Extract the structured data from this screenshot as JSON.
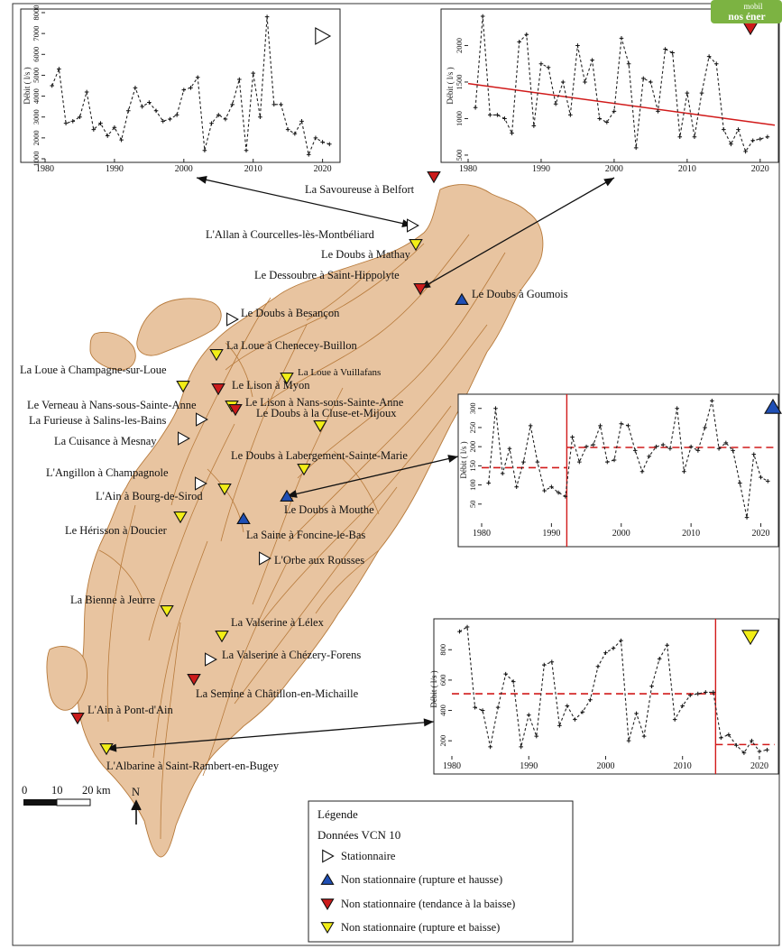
{
  "colors": {
    "region_fill": "#e8c4a0",
    "region_stroke": "#b77a3b",
    "stationnaire": "#ffffff",
    "rupture_hausse": "#1f4fb5",
    "tendance_baisse": "#cc1b1b",
    "rupture_baisse": "#f2ee16",
    "series_line": "#222222",
    "fit_line": "#d11a1a",
    "logo_bg": "#7cb342"
  },
  "logo": {
    "line1": "mobil",
    "line2": "nos éner"
  },
  "stations": [
    {
      "name": "La Savoureuse à Belfort",
      "status": "tendance_baisse"
    },
    {
      "name": "L'Allan à Courcelles-lès-Montbéliard",
      "status": "stationnaire"
    },
    {
      "name": "Le Doubs à Mathay",
      "status": "rupture_baisse"
    },
    {
      "name": "Le Dessoubre à Saint-Hippolyte",
      "status": "tendance_baisse"
    },
    {
      "name": "Le Doubs à Goumois",
      "status": "rupture_hausse"
    },
    {
      "name": "Le Doubs à Besançon",
      "status": "stationnaire"
    },
    {
      "name": "La Loue à Chenecey-Buillon",
      "status": "rupture_baisse"
    },
    {
      "name": "La Loue à Champagne-sur-Loue",
      "status": "rupture_baisse"
    },
    {
      "name": "Le Lison à Myon",
      "status": "tendance_baisse"
    },
    {
      "name": "La Loue à Vuillafans",
      "status": "rupture_baisse"
    },
    {
      "name": "Le Verneau à Nans-sous-Sainte-Anne",
      "status": "rupture_baisse"
    },
    {
      "name": "Le Lison à Nans-sous-Sainte-Anne",
      "status": "tendance_baisse"
    },
    {
      "name": "La Furieuse à Salins-les-Bains",
      "status": "stationnaire"
    },
    {
      "name": "Le Doubs à la Cluse-et-Mijoux",
      "status": "rupture_baisse"
    },
    {
      "name": "La Cuisance à Mesnay",
      "status": "stationnaire"
    },
    {
      "name": "Le Doubs à Labergement-Sainte-Marie",
      "status": "rupture_baisse"
    },
    {
      "name": "L'Angillon à Champagnole",
      "status": "stationnaire"
    },
    {
      "name": "L'Ain à Bourg-de-Sirod",
      "status": "rupture_baisse"
    },
    {
      "name": "Le Doubs à Mouthe",
      "status": "rupture_hausse"
    },
    {
      "name": "Le Hérisson à Doucier",
      "status": "rupture_baisse"
    },
    {
      "name": "La Saine à Foncine-le-Bas",
      "status": "rupture_hausse"
    },
    {
      "name": "L'Orbe aux Rousses",
      "status": "stationnaire"
    },
    {
      "name": "La Bienne à Jeurre",
      "status": "rupture_baisse"
    },
    {
      "name": "La Valserine à Lélex",
      "status": "rupture_baisse"
    },
    {
      "name": "La Valserine à Chézery-Forens",
      "status": "stationnaire"
    },
    {
      "name": "La Semine à Châtillon-en-Michaille",
      "status": "tendance_baisse"
    },
    {
      "name": "L'Ain à Pont-d'Ain",
      "status": "tendance_baisse"
    },
    {
      "name": "L'Albarine à Saint-Rambert-en-Bugey",
      "status": "rupture_baisse"
    }
  ],
  "legend": {
    "title": "Légende",
    "subtitle": "Données VCN 10",
    "items": [
      {
        "key": "stationnaire",
        "label": "Stationnaire"
      },
      {
        "key": "rupture_hausse",
        "label": "Non stationnaire (rupture et hausse)"
      },
      {
        "key": "tendance_baisse",
        "label": "Non stationnaire (tendance à la baisse)"
      },
      {
        "key": "rupture_baisse",
        "label": "Non stationnaire (rupture et baisse)"
      }
    ]
  },
  "scale": {
    "ticks": [
      "0",
      "10",
      "20 km"
    ],
    "north": "N"
  },
  "chart_data": [
    {
      "type": "line",
      "station": "L'Allan à Courcelles-lès-Montbéliard",
      "status": "stationnaire",
      "ylabel": "Débit ( l/s )",
      "xlim": [
        1980,
        2022
      ],
      "ylim": [
        1000,
        8000
      ],
      "xticks": [
        1980,
        1990,
        2000,
        2010,
        2020
      ],
      "yticks": [
        1000,
        2000,
        3000,
        4000,
        5000,
        6000,
        7000,
        8000
      ],
      "x": [
        1981,
        1982,
        1983,
        1984,
        1985,
        1986,
        1987,
        1988,
        1989,
        1990,
        1991,
        1992,
        1993,
        1994,
        1995,
        1996,
        1997,
        1998,
        1999,
        2000,
        2001,
        2002,
        2003,
        2004,
        2005,
        2006,
        2007,
        2008,
        2009,
        2010,
        2011,
        2012,
        2013,
        2014,
        2015,
        2016,
        2017,
        2018,
        2019,
        2020,
        2021
      ],
      "y": [
        4500,
        5300,
        2700,
        2800,
        3000,
        4200,
        2400,
        2700,
        2100,
        2500,
        1900,
        3300,
        4400,
        3500,
        3700,
        3300,
        2800,
        2900,
        3100,
        4300,
        4400,
        4900,
        1400,
        2700,
        3100,
        2900,
        3600,
        4800,
        1400,
        5100,
        3000,
        7800,
        3600,
        3600,
        2400,
        2200,
        2800,
        1200,
        2000,
        1800,
        1700
      ],
      "series": [
        {
          "line": "series"
        }
      ]
    },
    {
      "type": "line",
      "station": "Le Dessoubre à Saint-Hippolyte",
      "status": "tendance_baisse",
      "ylabel": "Débit ( l/s )",
      "xlim": [
        1980,
        2022
      ],
      "ylim": [
        450,
        2450
      ],
      "xticks": [
        1980,
        1990,
        2000,
        2010,
        2020
      ],
      "yticks": [
        500,
        1000,
        1500,
        2000
      ],
      "x": [
        1981,
        1982,
        1983,
        1984,
        1985,
        1986,
        1987,
        1988,
        1989,
        1990,
        1991,
        1992,
        1993,
        1994,
        1995,
        1996,
        1997,
        1998,
        1999,
        2000,
        2001,
        2002,
        2003,
        2004,
        2005,
        2006,
        2007,
        2008,
        2009,
        2010,
        2011,
        2012,
        2013,
        2014,
        2015,
        2016,
        2017,
        2018,
        2019,
        2020,
        2021
      ],
      "y": [
        1150,
        2400,
        1050,
        1050,
        1000,
        800,
        2050,
        2150,
        900,
        1750,
        1700,
        1200,
        1500,
        1050,
        2000,
        1500,
        1800,
        1000,
        950,
        1100,
        2100,
        1750,
        600,
        1550,
        1500,
        1100,
        1950,
        1900,
        750,
        1350,
        750,
        1350,
        1850,
        1750,
        850,
        650,
        850,
        550,
        700,
        720,
        750
      ],
      "trend": {
        "from": [
          1980,
          1480
        ],
        "to": [
          2022,
          910
        ]
      }
    },
    {
      "type": "line",
      "station": "Le Doubs à Mouthe",
      "status": "rupture_hausse",
      "ylabel": "Débit ( l/s )",
      "xlim": [
        1980,
        2022
      ],
      "ylim": [
        0,
        330
      ],
      "xticks": [
        1980,
        1990,
        2000,
        2010,
        2020
      ],
      "yticks": [
        50,
        100,
        150,
        200,
        250,
        300
      ],
      "x": [
        1981,
        1982,
        1983,
        1984,
        1985,
        1986,
        1987,
        1988,
        1989,
        1990,
        1991,
        1992,
        1993,
        1994,
        1995,
        1996,
        1997,
        1998,
        1999,
        2000,
        2001,
        2002,
        2003,
        2004,
        2005,
        2006,
        2007,
        2008,
        2009,
        2010,
        2011,
        2012,
        2013,
        2014,
        2015,
        2016,
        2017,
        2018,
        2019,
        2020,
        2021
      ],
      "y": [
        105,
        300,
        130,
        195,
        95,
        160,
        255,
        160,
        85,
        95,
        80,
        70,
        225,
        160,
        200,
        205,
        255,
        160,
        165,
        260,
        255,
        190,
        135,
        175,
        200,
        205,
        195,
        300,
        135,
        200,
        190,
        250,
        320,
        195,
        210,
        190,
        105,
        15,
        180,
        120,
        110
      ],
      "rupture_year": 1992.2,
      "means": [
        {
          "from": 1980,
          "to": 1992.2,
          "value": 145
        },
        {
          "from": 1992.2,
          "to": 2022,
          "value": 198
        }
      ]
    },
    {
      "type": "line",
      "station": "L'Albarine à Saint-Rambert-en-Bugey",
      "status": "rupture_baisse",
      "ylabel": "Débit ( l/s )",
      "xlim": [
        1980,
        2022
      ],
      "ylim": [
        100,
        980
      ],
      "xticks": [
        1980,
        1990,
        2000,
        2010,
        2020
      ],
      "yticks": [
        200,
        400,
        600,
        800
      ],
      "x": [
        1981,
        1982,
        1983,
        1984,
        1985,
        1986,
        1987,
        1988,
        1989,
        1990,
        1991,
        1992,
        1993,
        1994,
        1995,
        1996,
        1997,
        1998,
        1999,
        2000,
        2001,
        2002,
        2003,
        2004,
        2005,
        2006,
        2007,
        2008,
        2009,
        2010,
        2011,
        2012,
        2013,
        2014,
        2015,
        2016,
        2017,
        2018,
        2019,
        2020,
        2021
      ],
      "y": [
        920,
        950,
        420,
        400,
        160,
        420,
        640,
        590,
        160,
        370,
        230,
        700,
        720,
        300,
        430,
        340,
        390,
        470,
        690,
        780,
        810,
        860,
        200,
        380,
        230,
        560,
        740,
        830,
        340,
        430,
        500,
        510,
        520,
        520,
        220,
        240,
        170,
        120,
        200,
        130,
        140
      ],
      "rupture_year": 2014.3,
      "means": [
        {
          "from": 1980,
          "to": 2014.3,
          "value": 510
        },
        {
          "from": 2014.3,
          "to": 2022,
          "value": 175
        }
      ]
    }
  ]
}
